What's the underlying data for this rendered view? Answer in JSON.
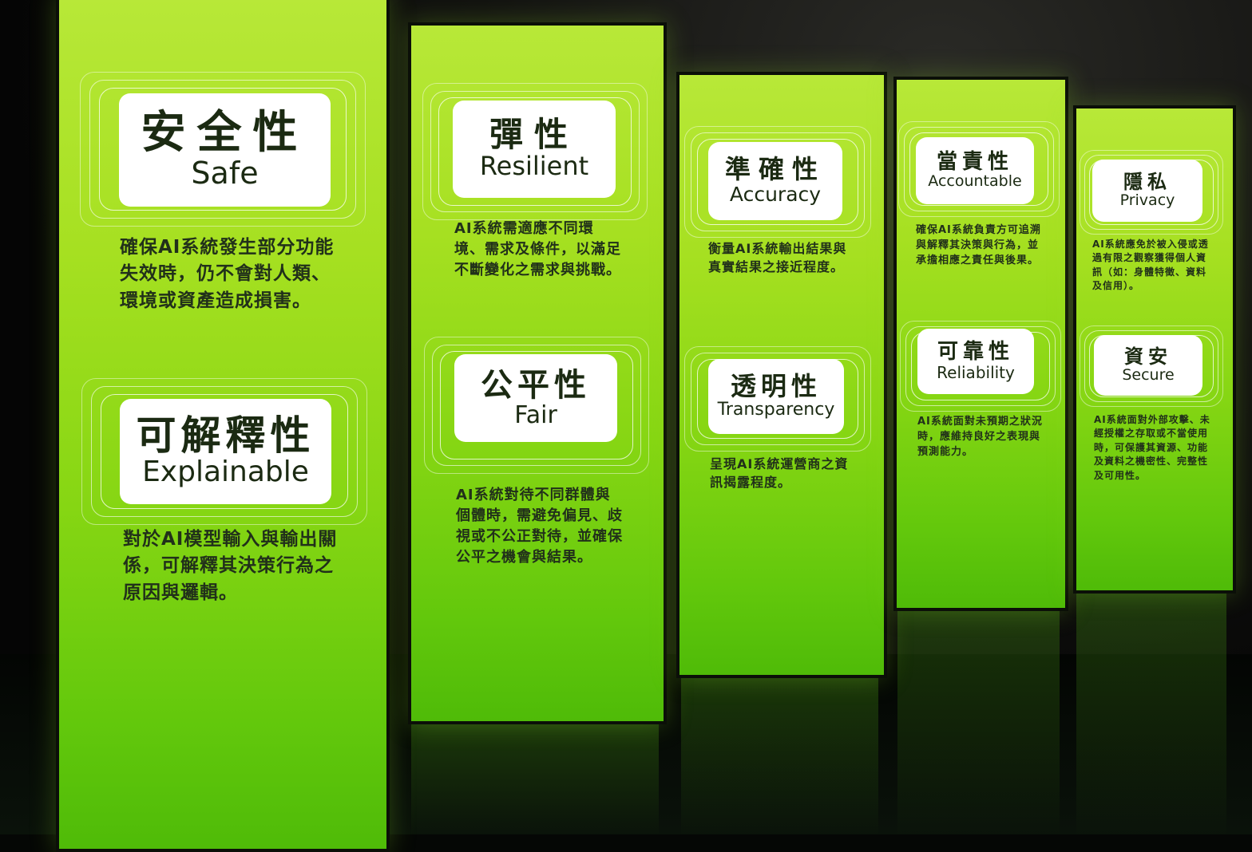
{
  "panels": [
    {
      "sections": [
        {
          "title_zh": "安全性",
          "title_en": "Safe",
          "description": "確保AI系統發生部分功能失效時，仍不會對人類、環境或資產造成損害。"
        },
        {
          "title_zh": "可解釋性",
          "title_en": "Explainable",
          "description": "對於AI模型輸入與輸出關係，可解釋其決策行為之原因與邏輯。"
        }
      ]
    },
    {
      "sections": [
        {
          "title_zh": "彈性",
          "title_en": "Resilient",
          "description": "AI系統需適應不同環境、需求及條件，以滿足不斷變化之需求與挑戰。"
        },
        {
          "title_zh": "公平性",
          "title_en": "Fair",
          "description": "AI系統對待不同群體與個體時，需避免偏見、歧視或不公正對待，並確保公平之機會與結果。"
        }
      ]
    },
    {
      "sections": [
        {
          "title_zh": "準確性",
          "title_en": "Accuracy",
          "description": "衡量AI系統輸出結果與真實結果之接近程度。"
        },
        {
          "title_zh": "透明性",
          "title_en": "Transparency",
          "description": "呈現AI系統運營商之資訊揭露程度。"
        }
      ]
    },
    {
      "sections": [
        {
          "title_zh": "當責性",
          "title_en": "Accountable",
          "description": "確保AI系統負責方可追溯與解釋其決策與行為，並承擔相應之責任與後果。"
        },
        {
          "title_zh": "可靠性",
          "title_en": "Reliability",
          "description": "AI系統面對未預期之狀況時，應維持良好之表現與預測能力。"
        }
      ]
    },
    {
      "sections": [
        {
          "title_zh": "隱私",
          "title_en": "Privacy",
          "description": "AI系統應免於被入侵或透過有限之觀察獲得個人資訊（如：身體特徵、資料及信用）。"
        },
        {
          "title_zh": "資安",
          "title_en": "Secure",
          "description": "AI系統面對外部攻擊、未經授權之存取或不當使用時，可保護其資源、功能及資料之機密性、完整性及可用性。"
        }
      ]
    }
  ],
  "colors": {
    "panel_top": "#b8e838",
    "panel_bottom": "#4fbb08",
    "text": "#1b2a12"
  }
}
